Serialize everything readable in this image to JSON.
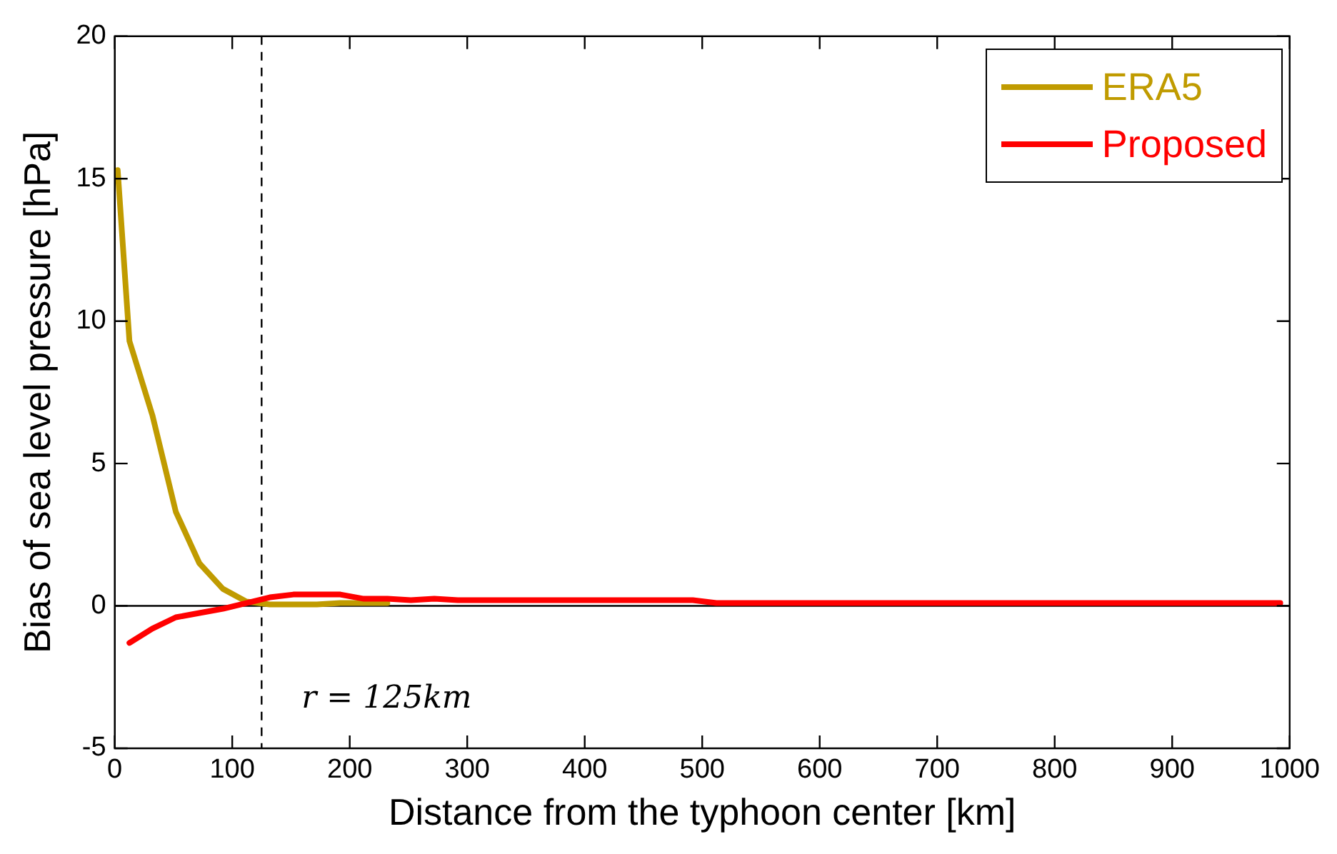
{
  "chart_data": {
    "type": "line",
    "xlabel": "Distance from the typhoon center [km]",
    "ylabel": "Bias of sea level pressure [hPa]",
    "xlim": [
      0,
      1000
    ],
    "xticks": [
      0,
      100,
      200,
      300,
      400,
      500,
      600,
      700,
      800,
      900,
      1000
    ],
    "ylim": [
      -5,
      20
    ],
    "yticks": [
      -5,
      0,
      5,
      10,
      15,
      20
    ],
    "grid": false,
    "legend": "top right",
    "marker": "none",
    "line_style": "solid",
    "series": [
      {
        "name": "ERA5",
        "color": "#c09b00",
        "x": [
          2.5,
          12.5,
          32,
          52,
          72,
          92,
          112,
          132,
          152,
          172,
          192,
          212,
          232
        ],
        "values": [
          15.3,
          9.3,
          6.7,
          3.3,
          1.5,
          0.6,
          0.15,
          0.05,
          0.05,
          0.05,
          0.1,
          0.1,
          0.1
        ]
      },
      {
        "name": "Proposed",
        "color": "#ff0000",
        "x": [
          12.5,
          32,
          52,
          72,
          92,
          112,
          132,
          152,
          172,
          192,
          212,
          232,
          252,
          272,
          292,
          392,
          492,
          512,
          600,
          700,
          800,
          900,
          992
        ],
        "values": [
          -1.3,
          -0.8,
          -0.4,
          -0.25,
          -0.1,
          0.1,
          0.3,
          0.4,
          0.4,
          0.4,
          0.25,
          0.25,
          0.2,
          0.25,
          0.2,
          0.2,
          0.2,
          0.1,
          0.1,
          0.1,
          0.1,
          0.1,
          0.1
        ]
      }
    ],
    "ref_lines": [
      {
        "axis": "x",
        "value": 125,
        "label": "r = 125km",
        "line_style": "dashed",
        "color": "#000000"
      },
      {
        "axis": "y",
        "value": 0,
        "line_style": "solid",
        "color": "#000000"
      }
    ]
  }
}
